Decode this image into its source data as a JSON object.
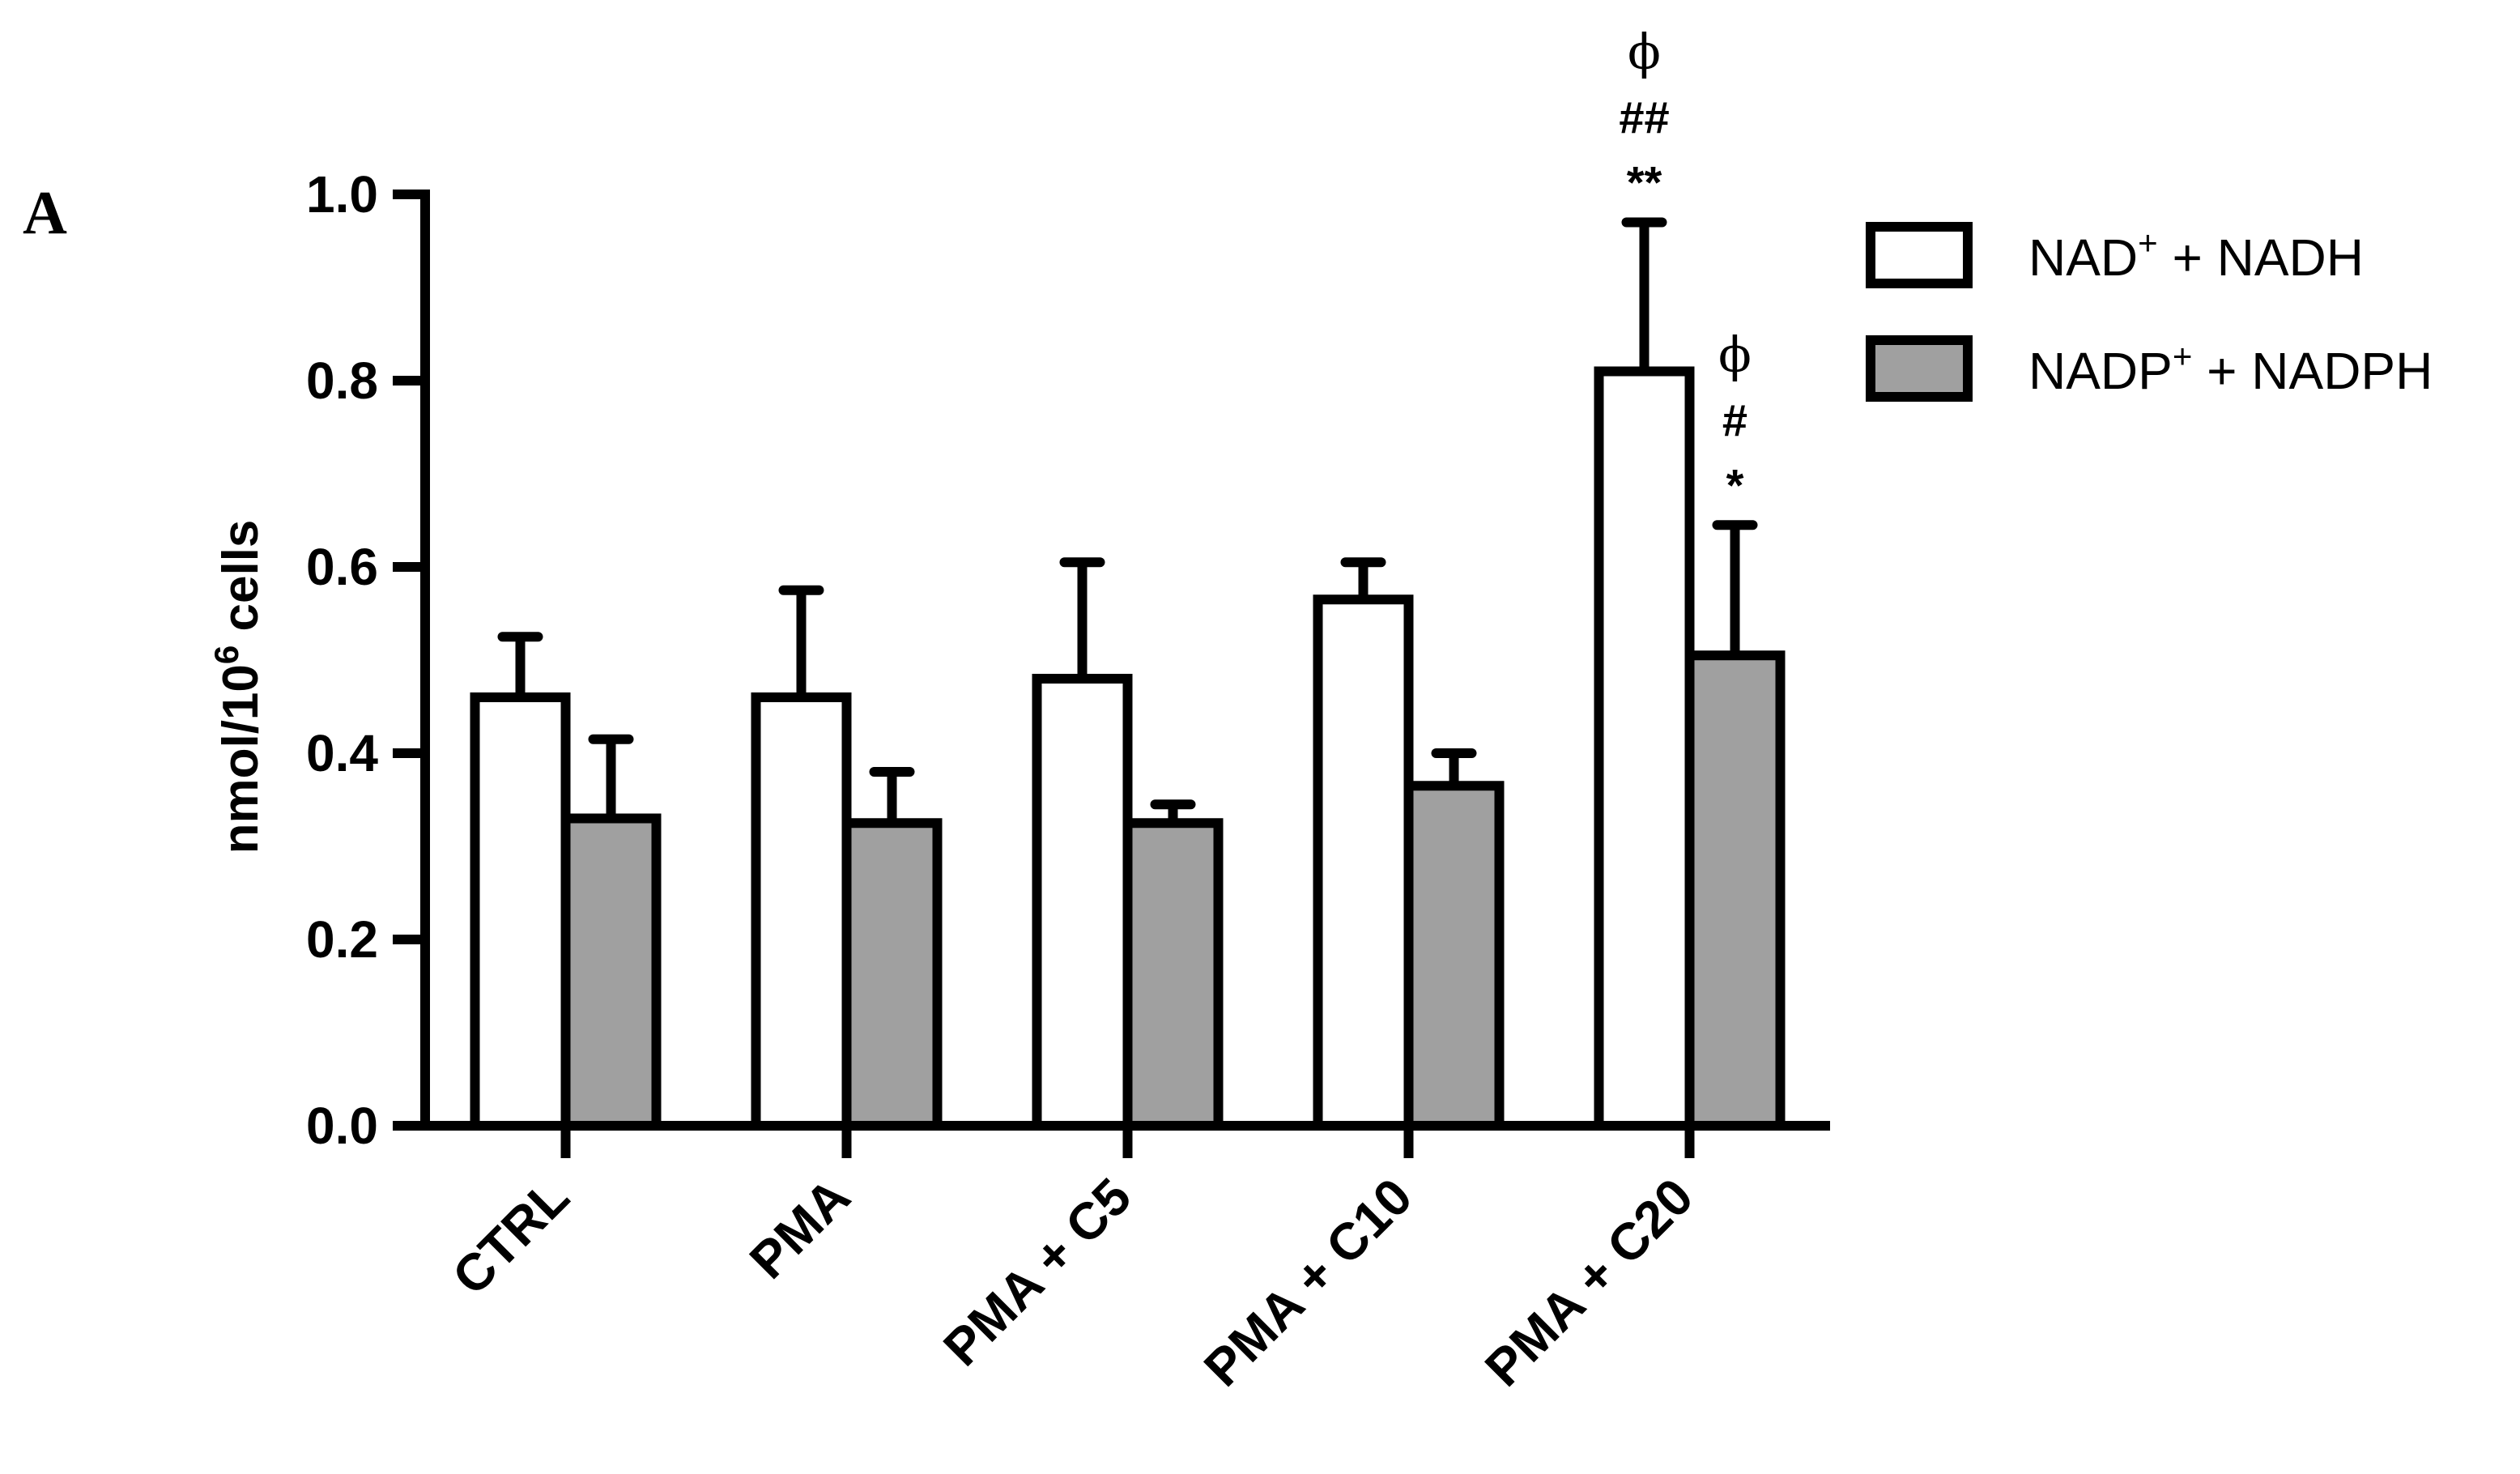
{
  "panel_label": "A",
  "chart_data": {
    "type": "bar",
    "title": "",
    "xlabel": "",
    "ylabel": {
      "main": "nmol/10",
      "sup": "6",
      "rest": " cells"
    },
    "ylim": [
      0,
      1.0
    ],
    "yticks": [
      "0.0",
      "0.2",
      "0.4",
      "0.6",
      "0.8",
      "1.0"
    ],
    "categories": [
      "CTRL",
      "PMA",
      "PMA + C5",
      "PMA + C10",
      "PMA + C20"
    ],
    "grid": false,
    "legend_position": "top-right",
    "series": [
      {
        "name": "NAD⁺ + NADH",
        "legend": {
          "base": "NAD",
          "sup": "+",
          "rest": " + NADH"
        },
        "color": "#ffffff",
        "values": [
          0.46,
          0.46,
          0.48,
          0.565,
          0.81
        ],
        "errors": [
          0.065,
          0.115,
          0.125,
          0.04,
          0.16
        ],
        "annotations": [
          [],
          [],
          [],
          [],
          [
            "ϕ",
            "##",
            "**"
          ]
        ]
      },
      {
        "name": "NADP⁺ + NADPH",
        "legend": {
          "base": "NADP",
          "sup": "+",
          "rest": " + NADPH"
        },
        "color": "#a0a0a0",
        "values": [
          0.33,
          0.325,
          0.325,
          0.365,
          0.505
        ],
        "errors": [
          0.085,
          0.055,
          0.02,
          0.035,
          0.14
        ],
        "annotations": [
          [],
          [],
          [],
          [],
          [
            "ϕ",
            "#",
            "*"
          ]
        ]
      }
    ]
  }
}
